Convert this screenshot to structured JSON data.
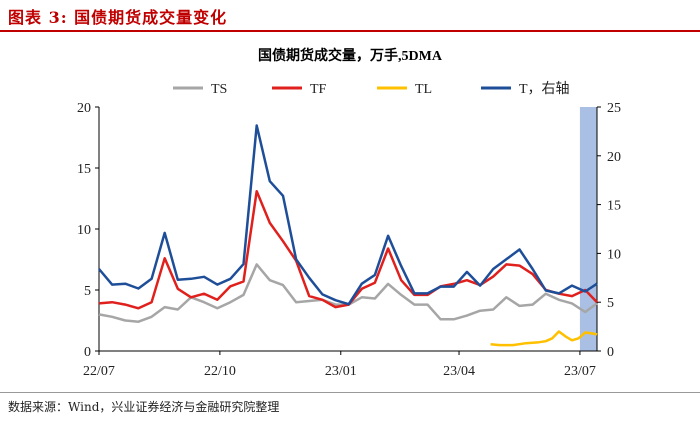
{
  "figure_label": "图表 3: 国债期货成交量变化",
  "source": "数据来源：Wind，兴业证券经济与金融研究院整理",
  "colors": {
    "TS": "#a6a6a6",
    "TF": "#e0201d",
    "TL": "#ffc000",
    "T": "#1f4e99",
    "shade": "#8ea9db",
    "header": "#c00000"
  },
  "chart_data": {
    "type": "line",
    "title": "国债期货成交量，万手,5DMA",
    "x_ticks": [
      "22/07",
      "22/10",
      "23/01",
      "23/04",
      "23/07"
    ],
    "x_tick_index": [
      0,
      92,
      184,
      274,
      366
    ],
    "y_left": {
      "lim": [
        0,
        20
      ],
      "ticks": [
        0,
        5,
        10,
        15,
        20
      ]
    },
    "y_right": {
      "lim": [
        0,
        25
      ],
      "ticks": [
        0,
        5,
        10,
        15,
        20,
        25
      ]
    },
    "shaded_x": [
      366,
      379
    ],
    "n_points": 380,
    "series": [
      {
        "name": "TS",
        "color": "#a6a6a6",
        "axis": "left",
        "x": [
          0,
          10,
          20,
          30,
          40,
          50,
          60,
          70,
          80,
          90,
          100,
          110,
          120,
          130,
          140,
          150,
          160,
          170,
          180,
          190,
          200,
          210,
          220,
          230,
          240,
          250,
          260,
          270,
          280,
          290,
          300,
          310,
          320,
          330,
          340,
          350,
          360,
          370,
          379
        ],
        "y": [
          3,
          2.8,
          2.5,
          2.4,
          2.8,
          3.6,
          3.4,
          4.4,
          4.0,
          3.5,
          4.0,
          4.6,
          7.1,
          5.8,
          5.4,
          4.0,
          4.1,
          4.2,
          3.8,
          3.8,
          4.4,
          4.3,
          5.5,
          4.6,
          3.8,
          3.8,
          2.6,
          2.6,
          2.9,
          3.3,
          3.4,
          4.4,
          3.7,
          3.8,
          4.7,
          4.2,
          3.9,
          3.2,
          3.9
        ]
      },
      {
        "name": "TF",
        "color": "#e0201d",
        "axis": "left",
        "x": [
          0,
          10,
          20,
          30,
          40,
          50,
          60,
          70,
          80,
          90,
          100,
          110,
          120,
          130,
          140,
          150,
          160,
          170,
          180,
          190,
          200,
          210,
          220,
          230,
          240,
          250,
          260,
          270,
          280,
          290,
          300,
          310,
          320,
          330,
          340,
          350,
          360,
          370,
          379
        ],
        "y": [
          3.9,
          4.0,
          3.8,
          3.5,
          4.0,
          7.6,
          5.1,
          4.4,
          4.7,
          4.2,
          5.3,
          5.7,
          13.1,
          10.5,
          9.0,
          7.4,
          4.5,
          4.2,
          3.6,
          3.8,
          5.1,
          5.6,
          8.4,
          5.8,
          4.6,
          4.6,
          5.3,
          5.5,
          5.8,
          5.4,
          6.1,
          7.1,
          7.0,
          6.3,
          5.0,
          4.7,
          4.5,
          5.0,
          4.0
        ]
      },
      {
        "name": "TL",
        "color": "#ffc000",
        "axis": "right",
        "x": [
          298,
          305,
          315,
          325,
          335,
          340,
          345,
          350,
          355,
          360,
          365,
          370,
          375,
          379
        ],
        "y": [
          0.7,
          0.6,
          0.6,
          0.8,
          0.9,
          1.0,
          1.3,
          2.0,
          1.5,
          1.1,
          1.3,
          1.9,
          1.8,
          1.7
        ]
      },
      {
        "name": "T，右轴",
        "color": "#1f4e99",
        "axis": "right",
        "x": [
          0,
          10,
          20,
          30,
          40,
          50,
          60,
          70,
          80,
          90,
          100,
          110,
          120,
          130,
          140,
          150,
          160,
          170,
          180,
          190,
          200,
          210,
          220,
          230,
          240,
          250,
          260,
          270,
          280,
          290,
          300,
          310,
          320,
          330,
          340,
          350,
          360,
          370,
          379
        ],
        "y": [
          8.4,
          6.8,
          6.9,
          6.4,
          7.4,
          12.1,
          7.3,
          7.4,
          7.6,
          6.8,
          7.4,
          8.9,
          23.1,
          17.4,
          15.9,
          9.4,
          7.5,
          5.8,
          5.2,
          4.8,
          6.9,
          7.8,
          11.8,
          8.7,
          5.9,
          5.9,
          6.6,
          6.6,
          8.1,
          6.7,
          8.4,
          9.4,
          10.4,
          8.4,
          6.2,
          5.9,
          6.7,
          6.1,
          6.9
        ]
      }
    ]
  }
}
